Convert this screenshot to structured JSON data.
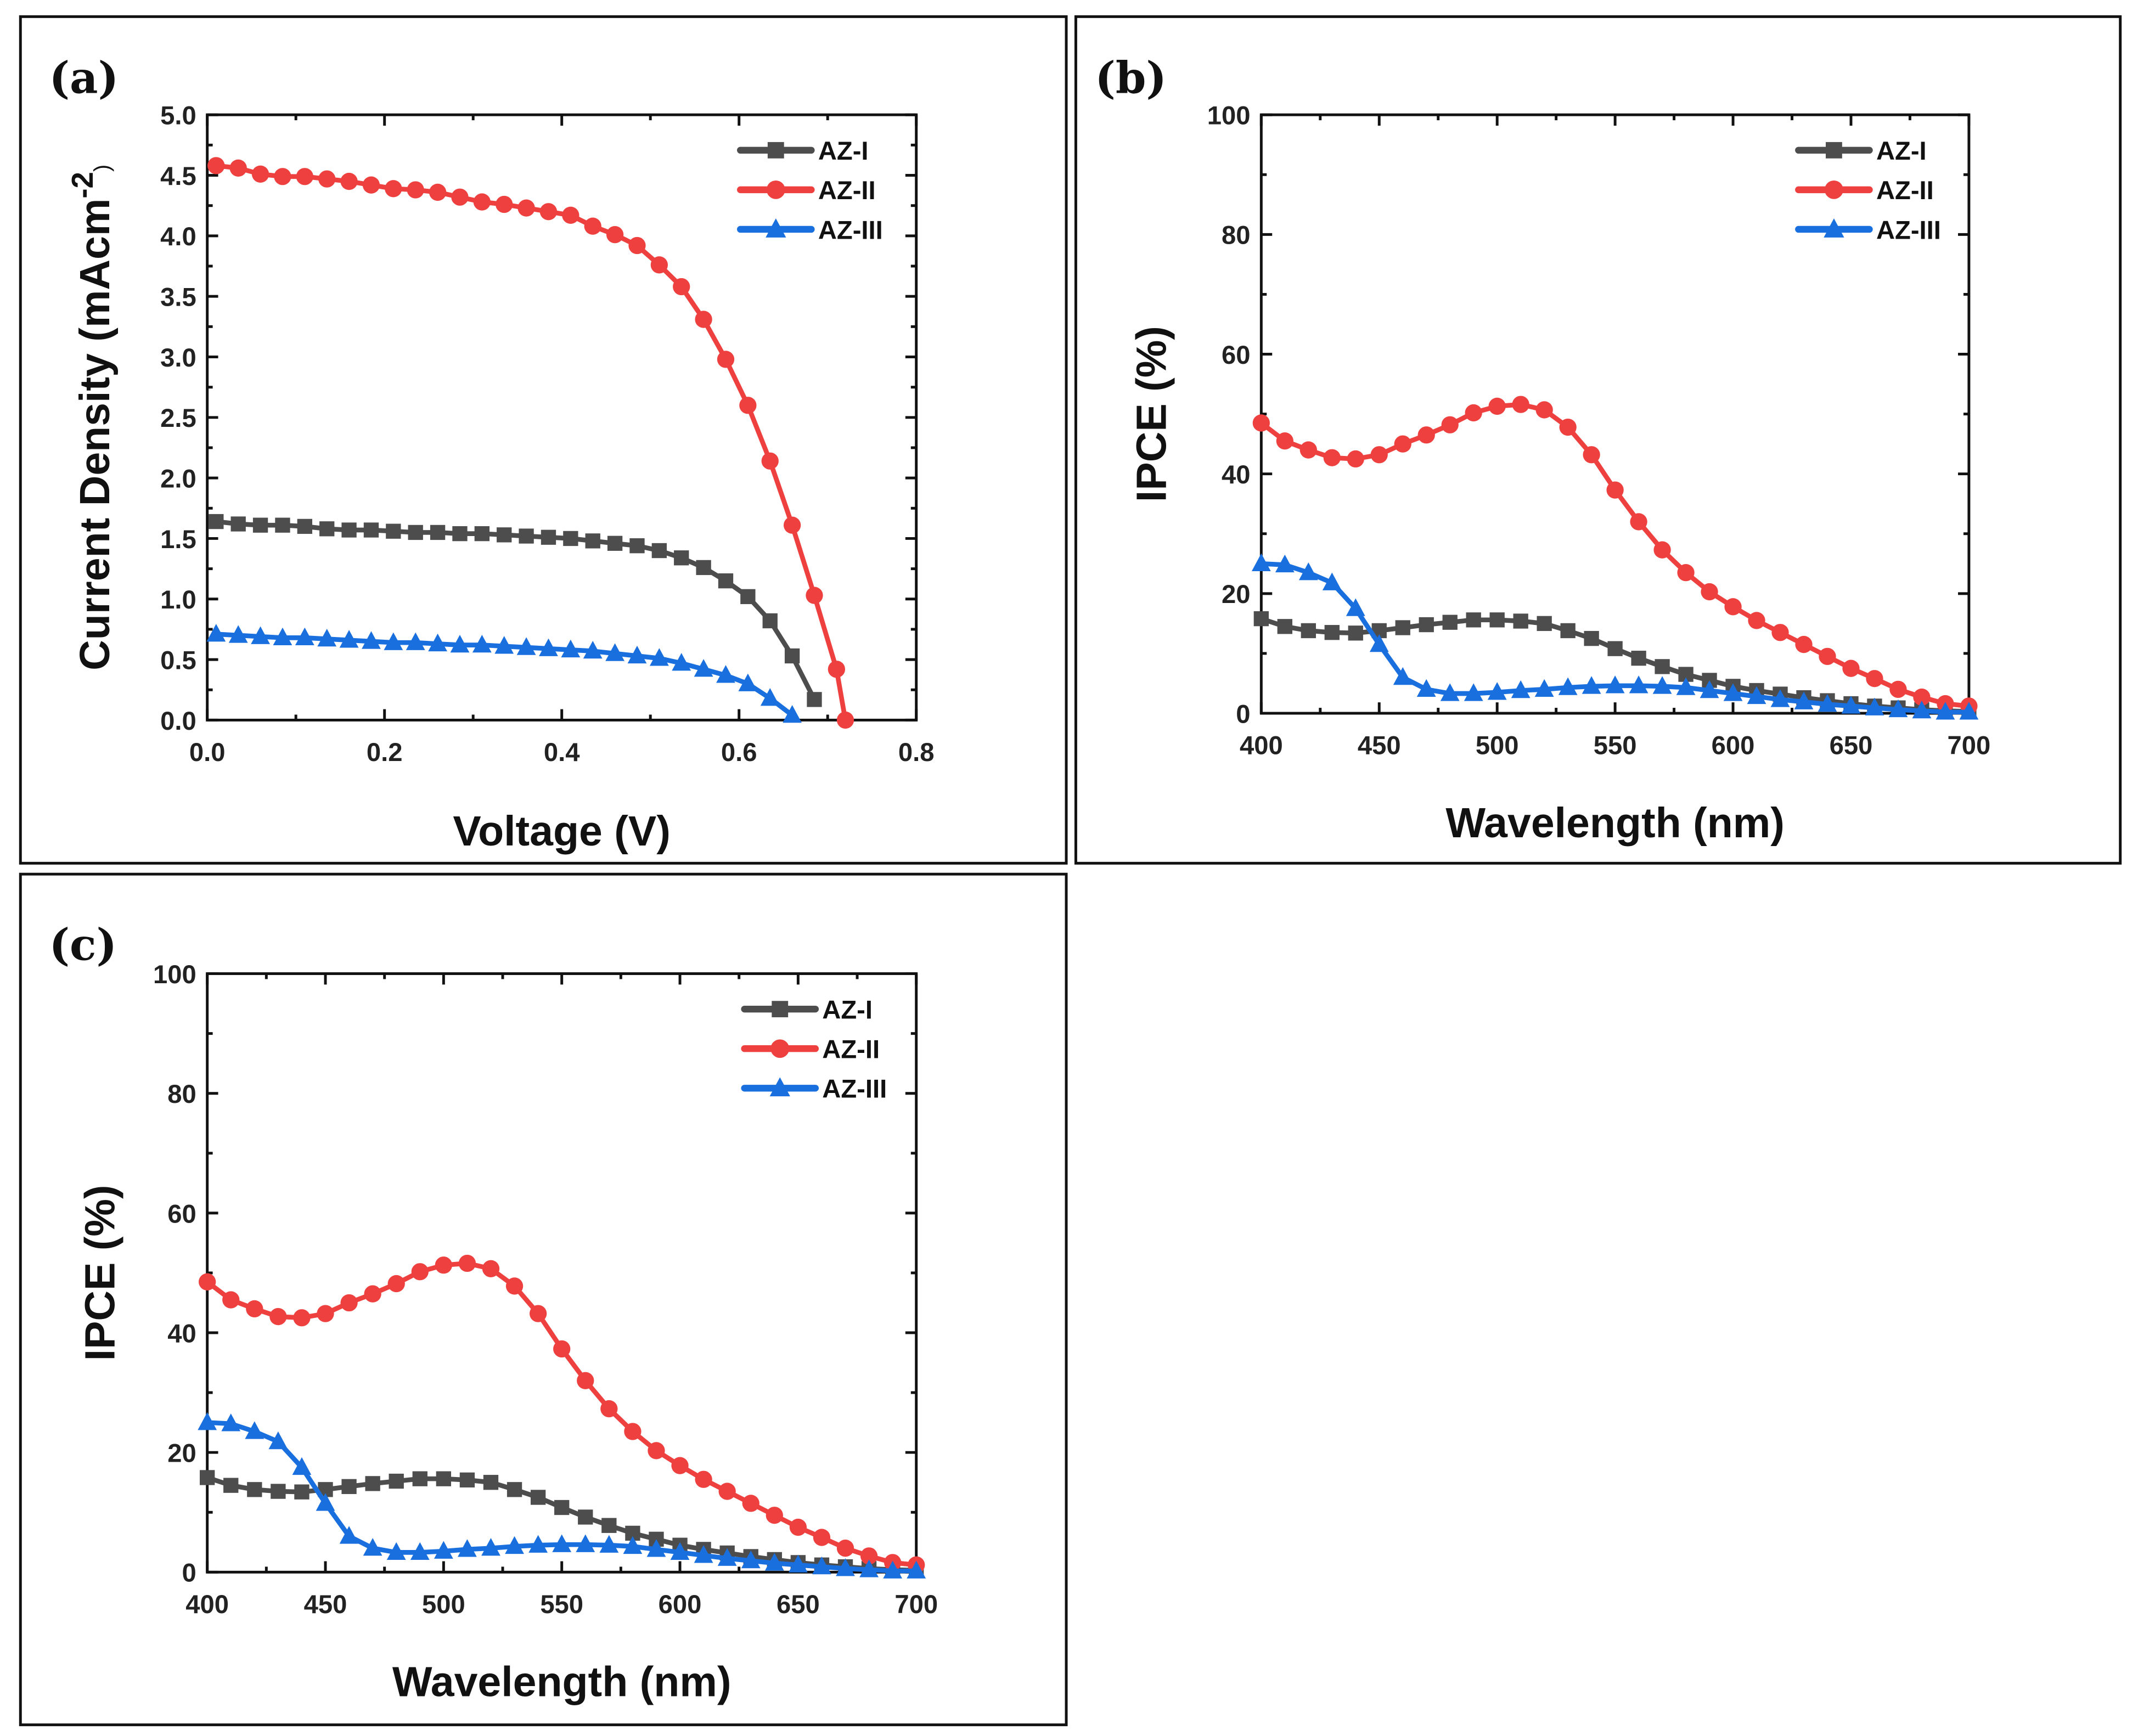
{
  "colors": {
    "AZ-I": "#4d4d4d",
    "AZ-II": "#ef4040",
    "AZ-III": "#1a6fdf"
  },
  "chart_data": [
    {
      "panel_label": "(a)",
      "type": "line",
      "xlabel": "Voltage (V)",
      "ylabel": "Current Density (mAcm",
      "ylabel_sup": "-2",
      "ylabel_close": ")",
      "xlim": [
        0,
        0.8
      ],
      "ylim": [
        0,
        5.0
      ],
      "xticks": [
        "0.0",
        "0.2",
        "0.4",
        "0.6",
        "0.8"
      ],
      "yticks": [
        "0.0",
        "0.5",
        "1.0",
        "1.5",
        "2.0",
        "2.5",
        "3.0",
        "3.5",
        "4.0",
        "4.5",
        "5.0"
      ],
      "legend_position": "top-right",
      "series": [
        {
          "name": "AZ-I",
          "marker": "square",
          "x": [
            0.01,
            0.035,
            0.06,
            0.085,
            0.11,
            0.135,
            0.16,
            0.185,
            0.21,
            0.235,
            0.26,
            0.285,
            0.31,
            0.335,
            0.36,
            0.385,
            0.41,
            0.435,
            0.46,
            0.485,
            0.51,
            0.535,
            0.56,
            0.585,
            0.61,
            0.635,
            0.66,
            0.685
          ],
          "y": [
            1.64,
            1.62,
            1.61,
            1.61,
            1.6,
            1.58,
            1.57,
            1.57,
            1.56,
            1.55,
            1.55,
            1.54,
            1.54,
            1.53,
            1.52,
            1.51,
            1.5,
            1.48,
            1.46,
            1.44,
            1.4,
            1.34,
            1.26,
            1.15,
            1.02,
            0.82,
            0.53,
            0.17
          ]
        },
        {
          "name": "AZ-II",
          "marker": "circle",
          "x": [
            0.01,
            0.035,
            0.06,
            0.085,
            0.11,
            0.135,
            0.16,
            0.185,
            0.21,
            0.235,
            0.26,
            0.285,
            0.31,
            0.335,
            0.36,
            0.385,
            0.41,
            0.435,
            0.46,
            0.485,
            0.51,
            0.535,
            0.56,
            0.585,
            0.61,
            0.635,
            0.66,
            0.685,
            0.71,
            0.72
          ],
          "y": [
            4.58,
            4.56,
            4.51,
            4.49,
            4.49,
            4.47,
            4.45,
            4.42,
            4.39,
            4.38,
            4.36,
            4.32,
            4.28,
            4.26,
            4.23,
            4.2,
            4.17,
            4.08,
            4.01,
            3.92,
            3.76,
            3.58,
            3.31,
            2.98,
            2.6,
            2.14,
            1.61,
            1.03,
            0.42,
            0.0
          ]
        },
        {
          "name": "AZ-III",
          "marker": "triangle",
          "x": [
            0.01,
            0.035,
            0.06,
            0.085,
            0.11,
            0.135,
            0.16,
            0.185,
            0.21,
            0.235,
            0.26,
            0.285,
            0.31,
            0.335,
            0.36,
            0.385,
            0.41,
            0.435,
            0.46,
            0.485,
            0.51,
            0.535,
            0.56,
            0.585,
            0.61,
            0.635,
            0.66
          ],
          "y": [
            0.71,
            0.7,
            0.69,
            0.68,
            0.68,
            0.67,
            0.66,
            0.65,
            0.64,
            0.64,
            0.63,
            0.62,
            0.62,
            0.61,
            0.6,
            0.59,
            0.58,
            0.57,
            0.55,
            0.53,
            0.51,
            0.47,
            0.42,
            0.37,
            0.3,
            0.18,
            0.04
          ]
        }
      ]
    },
    {
      "panel_label": "(b)",
      "type": "line",
      "xlabel": "Wavelength (nm)",
      "ylabel": "IPCE (%)",
      "xlim": [
        400,
        700
      ],
      "ylim": [
        0,
        100
      ],
      "xticks": [
        "400",
        "450",
        "500",
        "550",
        "600",
        "650",
        "700"
      ],
      "yticks": [
        "0",
        "20",
        "40",
        "60",
        "80",
        "100"
      ],
      "legend_position": "top-right",
      "series": [
        {
          "name": "AZ-I",
          "marker": "square",
          "x": [
            400,
            410,
            420,
            430,
            440,
            450,
            460,
            470,
            480,
            490,
            500,
            510,
            520,
            530,
            540,
            550,
            560,
            570,
            580,
            590,
            600,
            610,
            620,
            630,
            640,
            650,
            660,
            670,
            680,
            690,
            700
          ],
          "y": [
            15.8,
            14.5,
            13.8,
            13.5,
            13.4,
            13.8,
            14.3,
            14.8,
            15.2,
            15.6,
            15.6,
            15.4,
            15.0,
            13.8,
            12.5,
            10.8,
            9.2,
            7.8,
            6.5,
            5.5,
            4.5,
            3.8,
            3.2,
            2.6,
            2.1,
            1.6,
            1.2,
            0.9,
            0.6,
            0.4,
            0.3
          ]
        },
        {
          "name": "AZ-II",
          "marker": "circle",
          "x": [
            400,
            410,
            420,
            430,
            440,
            450,
            460,
            470,
            480,
            490,
            500,
            510,
            520,
            530,
            540,
            550,
            560,
            570,
            580,
            590,
            600,
            610,
            620,
            630,
            640,
            650,
            660,
            670,
            680,
            690,
            700
          ],
          "y": [
            48.5,
            45.5,
            44.0,
            42.7,
            42.5,
            43.2,
            45.0,
            46.5,
            48.2,
            50.2,
            51.3,
            51.6,
            50.7,
            47.8,
            43.2,
            37.3,
            32.0,
            27.3,
            23.5,
            20.3,
            17.8,
            15.5,
            13.5,
            11.5,
            9.5,
            7.5,
            5.8,
            4.0,
            2.7,
            1.6,
            1.2
          ]
        },
        {
          "name": "AZ-III",
          "marker": "triangle",
          "x": [
            400,
            410,
            420,
            430,
            440,
            450,
            460,
            470,
            480,
            490,
            500,
            510,
            520,
            530,
            540,
            550,
            560,
            570,
            580,
            590,
            600,
            610,
            620,
            630,
            640,
            650,
            660,
            670,
            680,
            690,
            700
          ],
          "y": [
            25.0,
            24.8,
            23.5,
            21.8,
            17.5,
            11.5,
            6.0,
            4.0,
            3.3,
            3.3,
            3.5,
            3.8,
            4.0,
            4.3,
            4.5,
            4.6,
            4.6,
            4.5,
            4.3,
            3.8,
            3.3,
            2.8,
            2.3,
            1.9,
            1.5,
            1.2,
            0.9,
            0.6,
            0.4,
            0.2,
            0.2
          ]
        }
      ]
    },
    {
      "panel_label": "(c)",
      "type": "line",
      "xlabel": "Wavelength (nm)",
      "ylabel": "IPCE (%)",
      "xlim": [
        400,
        700
      ],
      "ylim": [
        0,
        100
      ],
      "xticks": [
        "400",
        "450",
        "500",
        "550",
        "600",
        "650",
        "700"
      ],
      "yticks": [
        "0",
        "20",
        "40",
        "60",
        "80",
        "100"
      ],
      "legend_position": "top-right",
      "series": [
        {
          "name": "AZ-I",
          "marker": "square",
          "x": [
            400,
            410,
            420,
            430,
            440,
            450,
            460,
            470,
            480,
            490,
            500,
            510,
            520,
            530,
            540,
            550,
            560,
            570,
            580,
            590,
            600,
            610,
            620,
            630,
            640,
            650,
            660,
            670,
            680,
            690,
            700
          ],
          "y": [
            15.8,
            14.5,
            13.8,
            13.5,
            13.4,
            13.8,
            14.3,
            14.8,
            15.2,
            15.6,
            15.6,
            15.4,
            15.0,
            13.8,
            12.5,
            10.8,
            9.2,
            7.8,
            6.5,
            5.5,
            4.5,
            3.8,
            3.2,
            2.6,
            2.1,
            1.6,
            1.2,
            0.9,
            0.6,
            0.4,
            0.3
          ]
        },
        {
          "name": "AZ-II",
          "marker": "circle",
          "x": [
            400,
            410,
            420,
            430,
            440,
            450,
            460,
            470,
            480,
            490,
            500,
            510,
            520,
            530,
            540,
            550,
            560,
            570,
            580,
            590,
            600,
            610,
            620,
            630,
            640,
            650,
            660,
            670,
            680,
            690,
            700
          ],
          "y": [
            48.5,
            45.5,
            44.0,
            42.7,
            42.5,
            43.2,
            45.0,
            46.5,
            48.2,
            50.2,
            51.3,
            51.6,
            50.7,
            47.8,
            43.2,
            37.3,
            32.0,
            27.3,
            23.5,
            20.3,
            17.8,
            15.5,
            13.5,
            11.5,
            9.5,
            7.5,
            5.8,
            4.0,
            2.7,
            1.6,
            1.2
          ]
        },
        {
          "name": "AZ-III",
          "marker": "triangle",
          "x": [
            400,
            410,
            420,
            430,
            440,
            450,
            460,
            470,
            480,
            490,
            500,
            510,
            520,
            530,
            540,
            550,
            560,
            570,
            580,
            590,
            600,
            610,
            620,
            630,
            640,
            650,
            660,
            670,
            680,
            690,
            700
          ],
          "y": [
            25.0,
            24.8,
            23.5,
            21.8,
            17.5,
            11.5,
            6.0,
            4.0,
            3.3,
            3.3,
            3.5,
            3.8,
            4.0,
            4.3,
            4.5,
            4.6,
            4.6,
            4.5,
            4.3,
            3.8,
            3.3,
            2.8,
            2.3,
            1.9,
            1.5,
            1.2,
            0.9,
            0.6,
            0.4,
            0.2,
            0.2
          ]
        }
      ]
    }
  ]
}
